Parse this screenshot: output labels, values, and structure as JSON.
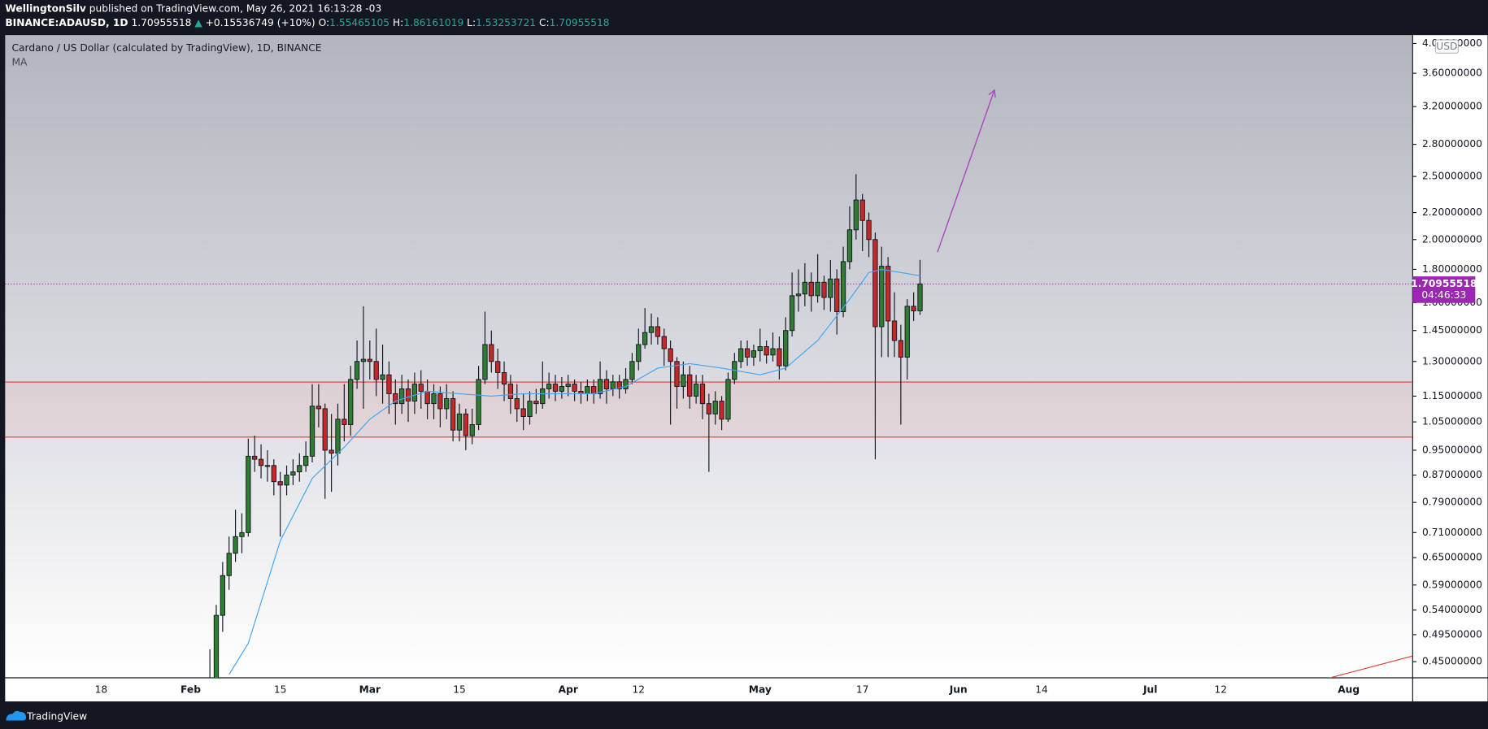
{
  "chart_data": {
    "type": "candlestick",
    "author": "WellingtonSilv",
    "published": "published on TradingView.com, May 26, 2021 16:13:28 -03",
    "symbol": "BINANCE:ADAUSD, 1D",
    "change": "+0.15536749 (+10%)",
    "ohlc_labels": [
      "O:",
      "H:",
      "L:",
      "C:"
    ],
    "title": "Cardano / US Dollar (calculated by TradingView), 1D, BINANCE",
    "currency": "USD",
    "countdown": "04:46:33",
    "brand": "TradingView",
    "up_color": "#2e7d32",
    "down_color": "#c62828",
    "log_scale": true,
    "xlim": [
      "2021-01-03",
      "2021-08-11"
    ],
    "ylim": [
      0.425,
      4.12
    ],
    "xticks": [
      {
        "value": "2021-01-18",
        "label": "18"
      },
      {
        "value": "2021-02-01",
        "label": "Feb"
      },
      {
        "value": "2021-02-15",
        "label": "15"
      },
      {
        "value": "2021-03-01",
        "label": "Mar"
      },
      {
        "value": "2021-03-15",
        "label": "15"
      },
      {
        "value": "2021-04-01",
        "label": "Apr"
      },
      {
        "value": "2021-04-12",
        "label": "12"
      },
      {
        "value": "2021-05-01",
        "label": "May"
      },
      {
        "value": "2021-05-17",
        "label": "17"
      },
      {
        "value": "2021-06-01",
        "label": "Jun"
      },
      {
        "value": "2021-06-14",
        "label": "14"
      },
      {
        "value": "2021-07-01",
        "label": "Jul"
      },
      {
        "value": "2021-07-12",
        "label": "12"
      },
      {
        "value": "2021-08-01",
        "label": "Aug"
      }
    ],
    "yticks": [
      {
        "value": 0.45,
        "label": "0.45000000"
      },
      {
        "value": 0.495,
        "label": "0.49500000"
      },
      {
        "value": 0.54,
        "label": "0.54000000"
      },
      {
        "value": 0.59,
        "label": "0.59000000"
      },
      {
        "value": 0.65,
        "label": "0.65000000"
      },
      {
        "value": 0.71,
        "label": "0.71000000"
      },
      {
        "value": 0.79,
        "label": "0.79000000"
      },
      {
        "value": 0.87,
        "label": "0.87000000"
      },
      {
        "value": 0.95,
        "label": "0.95000000"
      },
      {
        "value": 1.05,
        "label": "1.05000000"
      },
      {
        "value": 1.15,
        "label": "1.15000000"
      },
      {
        "value": 1.3,
        "label": "1.30000000"
      },
      {
        "value": 1.45,
        "label": "1.45000000"
      },
      {
        "value": 1.6,
        "label": "1.60000000"
      },
      {
        "value": 1.8,
        "label": "1.80000000"
      },
      {
        "value": 2,
        "label": "2.00000000"
      },
      {
        "value": 2.2,
        "label": "2.20000000"
      },
      {
        "value": 2.5,
        "label": "2.50000000"
      },
      {
        "value": 2.8,
        "label": "2.80000000"
      },
      {
        "value": 3.2,
        "label": "3.20000000"
      },
      {
        "value": 3.6,
        "label": "3.60000000"
      },
      {
        "value": 4,
        "label": "4.00000000"
      }
    ],
    "zone": [
      0.995,
      1.209
    ],
    "x": [
      "2021-02-03",
      "2021-02-04",
      "2021-02-05",
      "2021-02-06",
      "2021-02-07",
      "2021-02-08",
      "2021-02-09",
      "2021-02-10",
      "2021-02-11",
      "2021-02-12",
      "2021-02-13",
      "2021-02-14",
      "2021-02-15",
      "2021-02-16",
      "2021-02-17",
      "2021-02-18",
      "2021-02-19",
      "2021-02-20",
      "2021-02-21",
      "2021-02-22",
      "2021-02-23",
      "2021-02-24",
      "2021-02-25",
      "2021-02-26",
      "2021-02-27",
      "2021-02-28",
      "2021-03-01",
      "2021-03-02",
      "2021-03-03",
      "2021-03-04",
      "2021-03-05",
      "2021-03-06",
      "2021-03-07",
      "2021-03-08",
      "2021-03-09",
      "2021-03-10",
      "2021-03-11",
      "2021-03-12",
      "2021-03-13",
      "2021-03-14",
      "2021-03-15",
      "2021-03-16",
      "2021-03-17",
      "2021-03-18",
      "2021-03-19",
      "2021-03-20",
      "2021-03-21",
      "2021-03-22",
      "2021-03-23",
      "2021-03-24",
      "2021-03-25",
      "2021-03-26",
      "2021-03-27",
      "2021-03-28",
      "2021-03-29",
      "2021-03-30",
      "2021-03-31",
      "2021-04-01",
      "2021-04-02",
      "2021-04-03",
      "2021-04-04",
      "2021-04-05",
      "2021-04-06",
      "2021-04-07",
      "2021-04-08",
      "2021-04-09",
      "2021-04-10",
      "2021-04-11",
      "2021-04-12",
      "2021-04-13",
      "2021-04-14",
      "2021-04-15",
      "2021-04-16",
      "2021-04-17",
      "2021-04-18",
      "2021-04-19",
      "2021-04-20",
      "2021-04-21",
      "2021-04-22",
      "2021-04-23",
      "2021-04-24",
      "2021-04-25",
      "2021-04-26",
      "2021-04-27",
      "2021-04-28",
      "2021-04-29",
      "2021-04-30",
      "2021-05-01",
      "2021-05-02",
      "2021-05-03",
      "2021-05-04",
      "2021-05-05",
      "2021-05-06",
      "2021-05-07",
      "2021-05-08",
      "2021-05-09",
      "2021-05-10",
      "2021-05-11",
      "2021-05-12",
      "2021-05-13",
      "2021-05-14",
      "2021-05-15",
      "2021-05-16",
      "2021-05-17",
      "2021-05-18",
      "2021-05-19",
      "2021-05-20",
      "2021-05-21",
      "2021-05-22",
      "2021-05-23",
      "2021-05-24",
      "2021-05-25",
      "2021-05-26"
    ],
    "ohlc": [
      [
        0.38,
        0.42,
        0.37,
        0.4
      ],
      [
        0.4,
        0.47,
        0.39,
        0.42
      ],
      [
        0.42,
        0.55,
        0.41,
        0.53
      ],
      [
        0.53,
        0.64,
        0.5,
        0.61
      ],
      [
        0.61,
        0.7,
        0.58,
        0.66
      ],
      [
        0.66,
        0.77,
        0.64,
        0.7
      ],
      [
        0.7,
        0.76,
        0.66,
        0.71
      ],
      [
        0.71,
        0.99,
        0.7,
        0.93
      ],
      [
        0.93,
        1.0,
        0.88,
        0.92
      ],
      [
        0.92,
        0.97,
        0.86,
        0.9
      ],
      [
        0.9,
        0.95,
        0.85,
        0.9
      ],
      [
        0.9,
        0.92,
        0.81,
        0.85
      ],
      [
        0.85,
        0.88,
        0.7,
        0.84
      ],
      [
        0.84,
        0.9,
        0.81,
        0.87
      ],
      [
        0.87,
        0.92,
        0.84,
        0.88
      ],
      [
        0.88,
        0.94,
        0.85,
        0.9
      ],
      [
        0.9,
        0.98,
        0.88,
        0.93
      ],
      [
        0.93,
        1.2,
        0.91,
        1.11
      ],
      [
        1.11,
        1.2,
        1.03,
        1.1
      ],
      [
        1.1,
        1.12,
        0.8,
        0.95
      ],
      [
        0.95,
        1.08,
        0.82,
        0.94
      ],
      [
        0.94,
        1.12,
        0.9,
        1.06
      ],
      [
        1.06,
        1.2,
        0.98,
        1.04
      ],
      [
        1.04,
        1.28,
        1.0,
        1.22
      ],
      [
        1.22,
        1.4,
        1.18,
        1.3
      ],
      [
        1.3,
        1.58,
        1.1,
        1.31
      ],
      [
        1.31,
        1.4,
        1.22,
        1.3
      ],
      [
        1.3,
        1.46,
        1.15,
        1.22
      ],
      [
        1.22,
        1.38,
        1.12,
        1.24
      ],
      [
        1.24,
        1.3,
        1.08,
        1.16
      ],
      [
        1.16,
        1.22,
        1.04,
        1.12
      ],
      [
        1.12,
        1.24,
        1.08,
        1.18
      ],
      [
        1.18,
        1.22,
        1.05,
        1.13
      ],
      [
        1.13,
        1.25,
        1.08,
        1.2
      ],
      [
        1.2,
        1.26,
        1.1,
        1.17
      ],
      [
        1.17,
        1.22,
        1.06,
        1.12
      ],
      [
        1.12,
        1.2,
        1.06,
        1.16
      ],
      [
        1.16,
        1.19,
        1.03,
        1.1
      ],
      [
        1.1,
        1.2,
        1.06,
        1.14
      ],
      [
        1.14,
        1.17,
        0.98,
        1.02
      ],
      [
        1.02,
        1.12,
        0.98,
        1.08
      ],
      [
        1.08,
        1.1,
        0.95,
        1.0
      ],
      [
        1.0,
        1.1,
        0.97,
        1.04
      ],
      [
        1.04,
        1.28,
        1.02,
        1.22
      ],
      [
        1.22,
        1.55,
        1.2,
        1.38
      ],
      [
        1.38,
        1.45,
        1.25,
        1.3
      ],
      [
        1.3,
        1.36,
        1.18,
        1.25
      ],
      [
        1.25,
        1.3,
        1.13,
        1.2
      ],
      [
        1.2,
        1.24,
        1.08,
        1.14
      ],
      [
        1.14,
        1.2,
        1.05,
        1.1
      ],
      [
        1.1,
        1.16,
        1.02,
        1.07
      ],
      [
        1.07,
        1.17,
        1.04,
        1.13
      ],
      [
        1.13,
        1.18,
        1.08,
        1.12
      ],
      [
        1.12,
        1.3,
        1.1,
        1.18
      ],
      [
        1.18,
        1.25,
        1.14,
        1.2
      ],
      [
        1.2,
        1.24,
        1.13,
        1.17
      ],
      [
        1.17,
        1.23,
        1.14,
        1.19
      ],
      [
        1.19,
        1.24,
        1.15,
        1.2
      ],
      [
        1.2,
        1.22,
        1.13,
        1.17
      ],
      [
        1.17,
        1.21,
        1.12,
        1.16
      ],
      [
        1.16,
        1.22,
        1.13,
        1.19
      ],
      [
        1.19,
        1.22,
        1.12,
        1.16
      ],
      [
        1.16,
        1.3,
        1.14,
        1.22
      ],
      [
        1.22,
        1.26,
        1.12,
        1.18
      ],
      [
        1.18,
        1.24,
        1.15,
        1.21
      ],
      [
        1.21,
        1.24,
        1.14,
        1.18
      ],
      [
        1.18,
        1.27,
        1.16,
        1.22
      ],
      [
        1.22,
        1.34,
        1.2,
        1.3
      ],
      [
        1.3,
        1.46,
        1.26,
        1.38
      ],
      [
        1.38,
        1.57,
        1.36,
        1.44
      ],
      [
        1.44,
        1.54,
        1.38,
        1.47
      ],
      [
        1.47,
        1.52,
        1.38,
        1.42
      ],
      [
        1.42,
        1.46,
        1.28,
        1.36
      ],
      [
        1.36,
        1.4,
        1.04,
        1.3
      ],
      [
        1.3,
        1.32,
        1.1,
        1.19
      ],
      [
        1.19,
        1.3,
        1.14,
        1.24
      ],
      [
        1.24,
        1.28,
        1.1,
        1.15
      ],
      [
        1.15,
        1.24,
        1.12,
        1.2
      ],
      [
        1.2,
        1.24,
        1.06,
        1.12
      ],
      [
        1.12,
        1.16,
        0.88,
        1.08
      ],
      [
        1.08,
        1.17,
        1.04,
        1.13
      ],
      [
        1.13,
        1.15,
        1.02,
        1.06
      ],
      [
        1.06,
        1.25,
        1.05,
        1.22
      ],
      [
        1.22,
        1.34,
        1.2,
        1.3
      ],
      [
        1.3,
        1.4,
        1.27,
        1.36
      ],
      [
        1.36,
        1.4,
        1.28,
        1.32
      ],
      [
        1.32,
        1.38,
        1.28,
        1.35
      ],
      [
        1.35,
        1.46,
        1.3,
        1.37
      ],
      [
        1.37,
        1.4,
        1.29,
        1.33
      ],
      [
        1.33,
        1.44,
        1.3,
        1.36
      ],
      [
        1.36,
        1.42,
        1.22,
        1.28
      ],
      [
        1.28,
        1.52,
        1.26,
        1.45
      ],
      [
        1.45,
        1.78,
        1.42,
        1.64
      ],
      [
        1.64,
        1.8,
        1.55,
        1.65
      ],
      [
        1.65,
        1.84,
        1.58,
        1.72
      ],
      [
        1.72,
        1.78,
        1.55,
        1.64
      ],
      [
        1.64,
        1.9,
        1.6,
        1.72
      ],
      [
        1.72,
        1.76,
        1.56,
        1.63
      ],
      [
        1.63,
        1.86,
        1.55,
        1.74
      ],
      [
        1.74,
        1.8,
        1.43,
        1.55
      ],
      [
        1.55,
        1.95,
        1.52,
        1.85
      ],
      [
        1.85,
        2.25,
        1.8,
        2.07
      ],
      [
        2.07,
        2.52,
        2.0,
        2.3
      ],
      [
        2.3,
        2.35,
        1.92,
        2.14
      ],
      [
        2.14,
        2.2,
        1.88,
        2.0
      ],
      [
        2.0,
        2.05,
        0.92,
        1.47
      ],
      [
        1.47,
        1.95,
        1.32,
        1.82
      ],
      [
        1.82,
        1.88,
        1.32,
        1.5
      ],
      [
        1.5,
        1.66,
        1.32,
        1.4
      ],
      [
        1.4,
        1.48,
        1.04,
        1.32
      ],
      [
        1.32,
        1.62,
        1.22,
        1.58
      ],
      [
        1.58,
        1.66,
        1.5,
        1.55418769
      ],
      [
        1.55465105,
        1.86161019,
        1.53253721,
        1.70955518
      ]
    ],
    "ma": {
      "name": "MA",
      "color": "#42a5f5",
      "x": [
        "2021-02-07",
        "2021-02-10",
        "2021-02-15",
        "2021-02-20",
        "2021-02-25",
        "2021-03-01",
        "2021-03-05",
        "2021-03-10",
        "2021-03-15",
        "2021-03-20",
        "2021-03-25",
        "2021-04-01",
        "2021-04-05",
        "2021-04-10",
        "2021-04-15",
        "2021-04-20",
        "2021-04-25",
        "2021-05-01",
        "2021-05-05",
        "2021-05-10",
        "2021-05-15",
        "2021-05-18",
        "2021-05-20",
        "2021-05-23",
        "2021-05-26"
      ],
      "values": [
        0.43,
        0.48,
        0.69,
        0.86,
        0.96,
        1.06,
        1.13,
        1.17,
        1.16,
        1.15,
        1.16,
        1.16,
        1.16,
        1.19,
        1.27,
        1.29,
        1.27,
        1.24,
        1.27,
        1.4,
        1.62,
        1.78,
        1.8,
        1.78,
        1.76
      ]
    }
  }
}
